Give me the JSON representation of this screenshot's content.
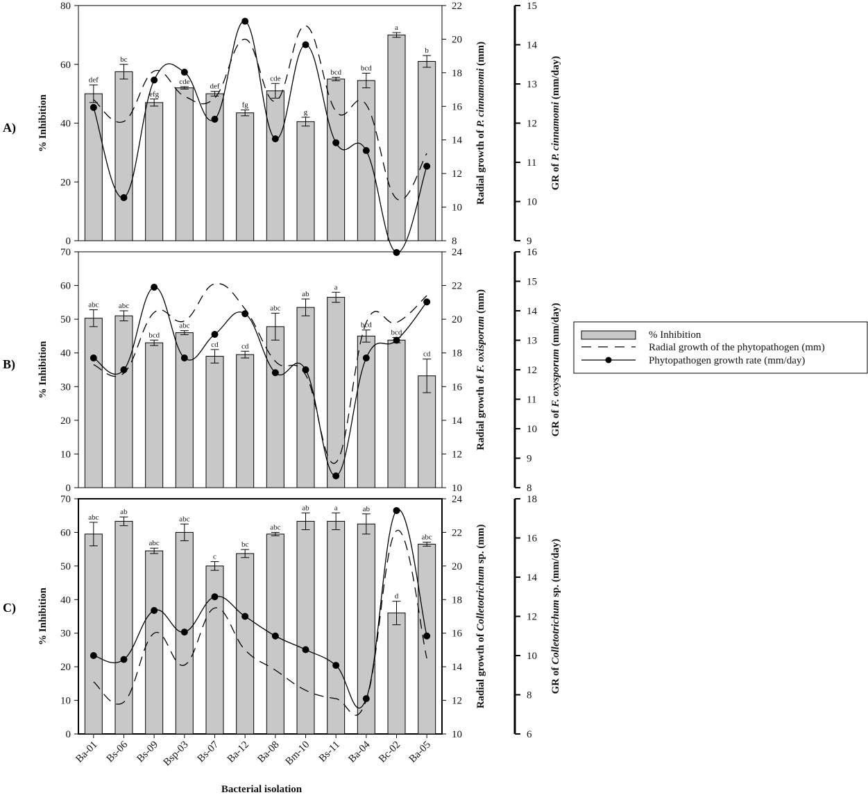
{
  "x_axis_title": "Bacterial isolation",
  "categories": [
    "Ba-01",
    "Bs-06",
    "Bs-09",
    "Bsp-03",
    "Bs-07",
    "Ba-12",
    "Ba-08",
    "Bm-10",
    "Bs-11",
    "Ba-04",
    "Bc-02",
    "Ba-05"
  ],
  "legend": {
    "items": [
      {
        "key": "bar",
        "label": "% Inhibition"
      },
      {
        "key": "dash",
        "label": "Radial growth of the phytopathogen (mm)"
      },
      {
        "key": "rate",
        "label": "Phytopathogen growth rate  (mm/day)"
      }
    ]
  },
  "colors": {
    "bar": "#c8c8c8",
    "line": "#000000"
  },
  "chart_data": [
    {
      "type": "bar+line",
      "panel_label": "A)",
      "y_left_label": "% Inhibition",
      "y_mid_label_prefix": "Radial growth of ",
      "y_mid_label_italic": "P. cinnamomi",
      "y_mid_label_suffix": " (mm)",
      "y_right_label_prefix": "GR of ",
      "y_right_label_italic": "P. cinnamomi",
      "y_right_label_suffix": " (mm/day)",
      "y_left_range": [
        0,
        80
      ],
      "y_left_ticks": [
        0,
        20,
        40,
        60,
        80
      ],
      "y_mid_range": [
        8,
        22
      ],
      "y_mid_ticks": [
        8,
        10,
        12,
        14,
        16,
        18,
        20,
        22
      ],
      "y_right_range": [
        9,
        15
      ],
      "y_right_ticks": [
        9,
        10,
        11,
        12,
        13,
        14,
        15
      ],
      "inhibition": [
        50,
        57.5,
        47,
        52,
        50,
        43.5,
        51,
        40.5,
        55,
        54.5,
        70,
        61
      ],
      "inhibition_err": [
        3,
        2.5,
        1.2,
        0.4,
        0.8,
        1,
        2.5,
        1.5,
        0.6,
        2.5,
        0.8,
        2
      ],
      "letters": [
        "def",
        "bc",
        "efg",
        "cde",
        "def",
        "fg",
        "cde",
        "g",
        "bcd",
        "bcd",
        "a",
        "b"
      ],
      "radial_growth": [
        16.4,
        15.1,
        18.1,
        16.6,
        16.5,
        20.0,
        16.3,
        20.8,
        15.7,
        16.1,
        10.5,
        13.2
      ],
      "growth_rate": [
        12.4,
        10.1,
        13.1,
        13.3,
        12.1,
        14.6,
        11.6,
        14.0,
        11.5,
        11.3,
        8.7,
        10.9
      ]
    },
    {
      "type": "bar+line",
      "panel_label": "B)",
      "y_left_label": "% Inhibition",
      "y_mid_label_prefix": "Radial growth of ",
      "y_mid_label_italic": "F. oxisporum",
      "y_mid_label_suffix": " (mm)",
      "y_right_label_prefix": "GR of ",
      "y_right_label_italic": "F. oxysporum",
      "y_right_label_suffix": " (mm/day)",
      "y_left_range": [
        0,
        70
      ],
      "y_left_ticks": [
        0,
        10,
        20,
        30,
        40,
        50,
        60,
        70
      ],
      "y_mid_range": [
        10,
        24
      ],
      "y_mid_ticks": [
        10,
        12,
        14,
        16,
        18,
        20,
        22,
        24
      ],
      "y_right_range": [
        8,
        16
      ],
      "y_right_ticks": [
        8,
        9,
        10,
        11,
        12,
        13,
        14,
        15,
        16
      ],
      "inhibition": [
        50.3,
        51,
        43,
        46,
        39,
        39.5,
        47.8,
        53.5,
        56.5,
        45,
        43.8,
        33.2
      ],
      "inhibition_err": [
        2.5,
        1.5,
        0.8,
        0.6,
        2,
        1,
        4,
        2.5,
        1.5,
        1.8,
        0.8,
        5
      ],
      "letters": [
        "abc",
        "abc",
        "bcd",
        "abc",
        "cd",
        "cd",
        "abc",
        "ab",
        "a",
        "bcd",
        "bcd",
        "cd"
      ],
      "radial_growth": [
        17.3,
        16.8,
        20.4,
        19.9,
        22.1,
        20.6,
        17.5,
        16.7,
        11.5,
        19.8,
        19.8,
        21.4
      ],
      "growth_rate": [
        12.4,
        12.0,
        14.8,
        12.4,
        13.2,
        13.9,
        11.9,
        12.0,
        8.4,
        12.4,
        13.0,
        14.3
      ]
    },
    {
      "type": "bar+line",
      "panel_label": "C)",
      "y_left_label": "% Inhibition",
      "y_mid_label_prefix": "Radial growth of ",
      "y_mid_label_italic": "Colletotrichum",
      "y_mid_label_suffix": " sp.  (mm)",
      "y_right_label_prefix": "GR of ",
      "y_right_label_italic": "Colletotrichum",
      "y_right_label_suffix": " sp. (mm/day)",
      "y_left_range": [
        0,
        70
      ],
      "y_left_ticks": [
        0,
        10,
        20,
        30,
        40,
        50,
        60,
        70
      ],
      "y_mid_range": [
        10,
        24
      ],
      "y_mid_ticks": [
        10,
        12,
        14,
        16,
        18,
        20,
        22,
        24
      ],
      "y_right_range": [
        6,
        18
      ],
      "y_right_ticks": [
        6,
        8,
        10,
        12,
        14,
        16,
        18
      ],
      "inhibition": [
        59.5,
        63.3,
        54.5,
        60,
        50,
        53.7,
        59.5,
        63.3,
        63.3,
        62.5,
        36,
        56.5
      ],
      "inhibition_err": [
        3.5,
        1.3,
        0.8,
        2.5,
        1.3,
        1.2,
        0.5,
        2.5,
        2.5,
        3,
        3.5,
        0.6
      ],
      "letters": [
        "abc",
        "ab",
        "abc",
        "abc",
        "c",
        "bc",
        "abc",
        "ab",
        "a",
        "ab",
        "d",
        "abc"
      ],
      "radial_growth": [
        13.1,
        11.9,
        16.0,
        14.1,
        17.5,
        15.0,
        13.8,
        12.6,
        12.1,
        12.0,
        22.1,
        14.5
      ],
      "growth_rate": [
        10.0,
        9.8,
        12.3,
        11.2,
        13.0,
        12.0,
        11.0,
        10.3,
        9.5,
        7.8,
        17.4,
        11.0
      ]
    }
  ]
}
